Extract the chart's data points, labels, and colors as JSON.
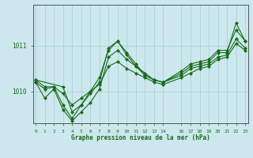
{
  "title": "Graphe pression niveau de la mer (hPa)",
  "bg_color": "#cce8ee",
  "grid_color": "#aacccc",
  "line_color": "#1a6b1a",
  "marker_color": "#1a6b1a",
  "ylim": [
    1009.3,
    1011.9
  ],
  "xlim": [
    -0.3,
    23.3
  ],
  "yticks": [
    1010,
    1011
  ],
  "xticks": [
    0,
    1,
    2,
    3,
    4,
    5,
    6,
    7,
    8,
    9,
    10,
    11,
    12,
    13,
    14,
    16,
    17,
    18,
    19,
    20,
    21,
    22,
    23
  ],
  "series": [
    {
      "x": [
        0,
        1,
        2,
        3,
        4,
        5,
        6,
        7,
        8,
        9,
        10,
        11,
        12,
        13,
        14,
        16,
        17,
        18,
        19,
        20,
        21,
        22,
        23
      ],
      "y": [
        1010.2,
        1009.85,
        1010.05,
        1009.6,
        1009.35,
        1009.55,
        1009.75,
        1010.05,
        1010.75,
        1010.9,
        1010.7,
        1010.55,
        1010.4,
        1010.25,
        1010.2,
        1010.35,
        1010.5,
        1010.55,
        1010.6,
        1010.75,
        1010.8,
        1011.15,
        1010.95
      ]
    },
    {
      "x": [
        0,
        1,
        2,
        3,
        4,
        5,
        6,
        7,
        8,
        9,
        10,
        11,
        12,
        13,
        14,
        16,
        17,
        18,
        19,
        20,
        21,
        22,
        23
      ],
      "y": [
        1010.25,
        1010.1,
        1010.1,
        1009.7,
        1009.4,
        1009.7,
        1009.95,
        1010.2,
        1010.95,
        1011.1,
        1010.85,
        1010.6,
        1010.35,
        1010.25,
        1010.2,
        1010.45,
        1010.6,
        1010.65,
        1010.7,
        1010.9,
        1010.9,
        1011.35,
        1011.1
      ]
    },
    {
      "x": [
        0,
        3,
        4,
        5,
        6,
        7,
        8,
        9,
        10,
        11,
        12,
        13,
        14,
        16,
        17,
        18,
        19,
        20,
        21,
        22,
        23
      ],
      "y": [
        1010.25,
        1010.1,
        1009.55,
        1009.7,
        1010.0,
        1010.3,
        1010.9,
        1011.1,
        1010.8,
        1010.55,
        1010.35,
        1010.25,
        1010.2,
        1010.4,
        1010.55,
        1010.6,
        1010.65,
        1010.85,
        1010.85,
        1011.5,
        1011.1
      ]
    },
    {
      "x": [
        0,
        1,
        2,
        3,
        4,
        5,
        6,
        7,
        8,
        9,
        10,
        11,
        12,
        13,
        14,
        16,
        17,
        18,
        19,
        20,
        21,
        22,
        23
      ],
      "y": [
        1010.2,
        1010.05,
        1010.1,
        1009.95,
        1009.7,
        1009.85,
        1010.0,
        1010.15,
        1010.55,
        1010.65,
        1010.5,
        1010.4,
        1010.3,
        1010.2,
        1010.15,
        1010.3,
        1010.4,
        1010.5,
        1010.55,
        1010.7,
        1010.75,
        1011.05,
        1010.9
      ]
    }
  ],
  "figsize": [
    3.2,
    2.0
  ],
  "dpi": 100
}
